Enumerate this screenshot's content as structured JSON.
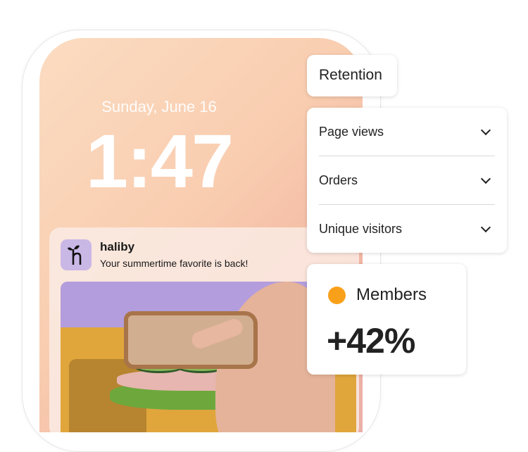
{
  "lockscreen": {
    "date": "Sunday, June 16",
    "time": "1:47"
  },
  "notification": {
    "app_name": "haliby",
    "message": "Your summertime favorite is back!",
    "icon": "haliby-sprout-logo",
    "icon_bg": "#c9b7e6"
  },
  "retention": {
    "label": "Retention"
  },
  "metrics_dropdowns": [
    {
      "label": "Page views"
    },
    {
      "label": "Orders"
    },
    {
      "label": "Unique visitors"
    }
  ],
  "members": {
    "label": "Members",
    "change": "+42%",
    "dot_color": "#f9a01b"
  }
}
